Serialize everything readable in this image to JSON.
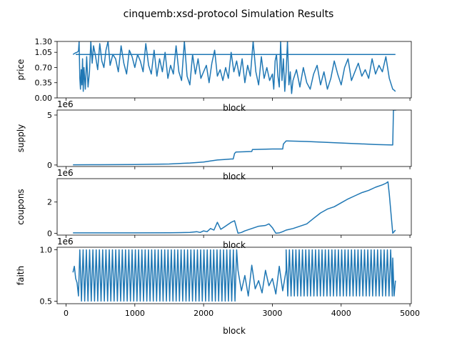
{
  "title": "cinquemb:xsd-protocol Simulation Results",
  "colors": {
    "line": "#1f77b4",
    "axis": "#000000",
    "background": "#ffffff"
  },
  "chart_data": [
    {
      "type": "line",
      "ylabel": "price",
      "xlabel": "block",
      "offset_text": "",
      "xlim": [
        -130,
        5020
      ],
      "ylim": [
        0,
        1.3
      ],
      "yticks": [
        0,
        0.35,
        0.7,
        1.05,
        1.3
      ],
      "ytick_labels": [
        "0.00",
        "0.35",
        "0.70",
        "1.05",
        "1.30"
      ],
      "show_xtick_labels": false,
      "series": [
        {
          "x": [
            100,
            120,
            140,
            160,
            180,
            190,
            200,
            210,
            220,
            230,
            240,
            250,
            260,
            280,
            300,
            320,
            340,
            360,
            380,
            400,
            430,
            460,
            490,
            520,
            550,
            580,
            610,
            640,
            680,
            720,
            760,
            800,
            840,
            880,
            920,
            960,
            1000,
            1040,
            1080,
            1120,
            1160,
            1200,
            1240,
            1280,
            1320,
            1360,
            1400,
            1440,
            1480,
            1520,
            1560,
            1600,
            1640,
            1680,
            1720,
            1760,
            1800,
            1840,
            1880,
            1920,
            1960,
            2000,
            2040,
            2080,
            2120,
            2160,
            2200,
            2240,
            2280,
            2320,
            2360,
            2400,
            2440,
            2480,
            2520,
            2560,
            2600,
            2640,
            2680,
            2720,
            2760,
            2800,
            2840,
            2880,
            2920,
            2960,
            3000,
            3020,
            3040,
            3060,
            3080,
            3100,
            3120,
            3140,
            3160,
            3180,
            3200,
            3220,
            3240,
            3260,
            3280,
            3300,
            3350,
            3400,
            3450,
            3500,
            3550,
            3600,
            3650,
            3700,
            3750,
            3800,
            3850,
            3900,
            3950,
            4000,
            4050,
            4100,
            4150,
            4200,
            4250,
            4300,
            4350,
            4400,
            4450,
            4500,
            4550,
            4600,
            4650,
            4700,
            4750,
            4770,
            4790
          ],
          "y": [
            1.0,
            1.02,
            1.04,
            1.05,
            1.08,
            1.3,
            0.45,
            0.2,
            0.65,
            0.3,
            0.9,
            0.15,
            0.7,
            0.2,
            0.95,
            0.25,
            0.6,
            1.3,
            0.8,
            1.2,
            0.95,
            0.65,
            1.25,
            0.85,
            0.7,
            1.1,
            1.3,
            0.75,
            1.0,
            0.9,
            0.6,
            1.2,
            0.8,
            0.55,
            1.1,
            0.95,
            0.7,
            1.0,
            0.85,
            0.6,
            1.25,
            0.75,
            0.55,
            1.1,
            0.5,
            0.9,
            0.6,
            1.05,
            0.45,
            0.75,
            0.55,
            1.2,
            0.6,
            0.4,
            1.3,
            0.5,
            0.3,
            1.0,
            0.55,
            0.9,
            0.45,
            0.6,
            0.75,
            0.35,
            0.8,
            1.1,
            0.5,
            0.65,
            0.4,
            0.7,
            0.45,
            1.05,
            0.6,
            0.85,
            0.5,
            0.9,
            0.35,
            0.75,
            0.5,
            1.3,
            0.6,
            0.3,
            0.95,
            0.45,
            0.7,
            0.4,
            0.55,
            0.2,
            0.85,
            1.0,
            0.5,
            0.25,
            1.3,
            0.4,
            0.9,
            0.15,
            0.6,
            1.3,
            0.3,
            0.6,
            0.1,
            0.4,
            0.65,
            0.25,
            0.7,
            0.35,
            0.2,
            0.55,
            0.75,
            0.3,
            0.6,
            0.2,
            0.45,
            0.85,
            0.55,
            0.3,
            0.7,
            0.9,
            0.4,
            0.6,
            0.8,
            0.5,
            0.65,
            0.45,
            0.9,
            0.55,
            0.75,
            0.6,
            0.95,
            0.45,
            0.2,
            0.18,
            0.15
          ]
        },
        {
          "x": [
            140,
            4790
          ],
          "y": [
            1.0,
            1.0
          ]
        }
      ]
    },
    {
      "type": "line",
      "ylabel": "supply",
      "xlabel": "block",
      "offset_text": "1e6",
      "xlim": [
        -130,
        5020
      ],
      "ylim": [
        -0.15,
        5.5
      ],
      "yticks": [
        0,
        5
      ],
      "ytick_labels": [
        "0",
        "5"
      ],
      "show_xtick_labels": false,
      "series": [
        {
          "x": [
            100,
            500,
            1000,
            1500,
            1800,
            2000,
            2100,
            2200,
            2300,
            2400,
            2430,
            2450,
            2470,
            2700,
            2710,
            3000,
            3010,
            3150,
            3160,
            3200,
            3220,
            3500,
            4000,
            4500,
            4750,
            4760,
            4800
          ],
          "y": [
            0.02,
            0.03,
            0.05,
            0.1,
            0.2,
            0.3,
            0.4,
            0.5,
            0.55,
            0.6,
            0.6,
            1.15,
            1.3,
            1.35,
            1.55,
            1.6,
            1.6,
            1.6,
            2.1,
            2.4,
            2.4,
            2.35,
            2.2,
            2.05,
            2.0,
            5.5,
            5.5
          ]
        }
      ]
    },
    {
      "type": "line",
      "ylabel": "coupons",
      "xlabel": "block",
      "offset_text": "1e6",
      "xlim": [
        -130,
        5020
      ],
      "ylim": [
        -0.12,
        3.5
      ],
      "yticks": [
        0,
        2
      ],
      "ytick_labels": [
        "0",
        "2"
      ],
      "show_xtick_labels": false,
      "series": [
        {
          "x": [
            100,
            500,
            1000,
            1500,
            1800,
            1900,
            1950,
            2000,
            2050,
            2100,
            2150,
            2200,
            2250,
            2300,
            2350,
            2400,
            2450,
            2500,
            2550,
            2600,
            2700,
            2800,
            2900,
            2950,
            3000,
            3050,
            3100,
            3150,
            3200,
            3300,
            3400,
            3500,
            3600,
            3700,
            3800,
            3900,
            4000,
            4100,
            4200,
            4300,
            4400,
            4500,
            4600,
            4650,
            4680,
            4700,
            4750,
            4790
          ],
          "y": [
            0.02,
            0.02,
            0.02,
            0.03,
            0.05,
            0.1,
            0.05,
            0.15,
            0.1,
            0.3,
            0.2,
            0.7,
            0.25,
            0.4,
            0.55,
            0.7,
            0.8,
            0.0,
            0.05,
            0.15,
            0.3,
            0.45,
            0.5,
            0.6,
            0.35,
            0.0,
            0.02,
            0.1,
            0.2,
            0.3,
            0.45,
            0.6,
            0.95,
            1.3,
            1.55,
            1.7,
            1.95,
            2.2,
            2.4,
            2.6,
            2.75,
            2.95,
            3.1,
            3.2,
            3.3,
            2.5,
            0.0,
            0.2
          ]
        }
      ]
    },
    {
      "type": "line",
      "ylabel": "faith",
      "xlabel": "block",
      "offset_text": "1e6",
      "xlim": [
        -130,
        5020
      ],
      "ylim": [
        0.475,
        1.025
      ],
      "yticks": [
        0.5,
        1.0
      ],
      "ytick_labels": [
        "0.5",
        "1.0"
      ],
      "xticks": [
        0,
        1000,
        2000,
        3000,
        4000,
        5000
      ],
      "xtick_labels": [
        "0",
        "1000",
        "2000",
        "3000",
        "4000",
        "5000"
      ],
      "show_xtick_labels": true,
      "series": [
        {
          "oscillation": [
            {
              "from": 200,
              "to": 2500,
              "period": 47.5,
              "low": 0.5,
              "high": 1.0
            },
            {
              "from": 2500,
              "to": 3200,
              "period": 0,
              "low": 0.55,
              "high": 0.85
            },
            {
              "from": 3200,
              "to": 4750,
              "period": 47.5,
              "low": 0.55,
              "high": 1.0
            }
          ],
          "x": [
            100,
            120,
            140,
            160,
            180,
            200
          ],
          "y": [
            0.78,
            0.84,
            0.72,
            0.68,
            0.55,
            1.0
          ],
          "tail_x": [
            4750,
            4770,
            4790
          ],
          "tail_y": [
            0.92,
            0.55,
            0.7
          ]
        }
      ]
    }
  ]
}
